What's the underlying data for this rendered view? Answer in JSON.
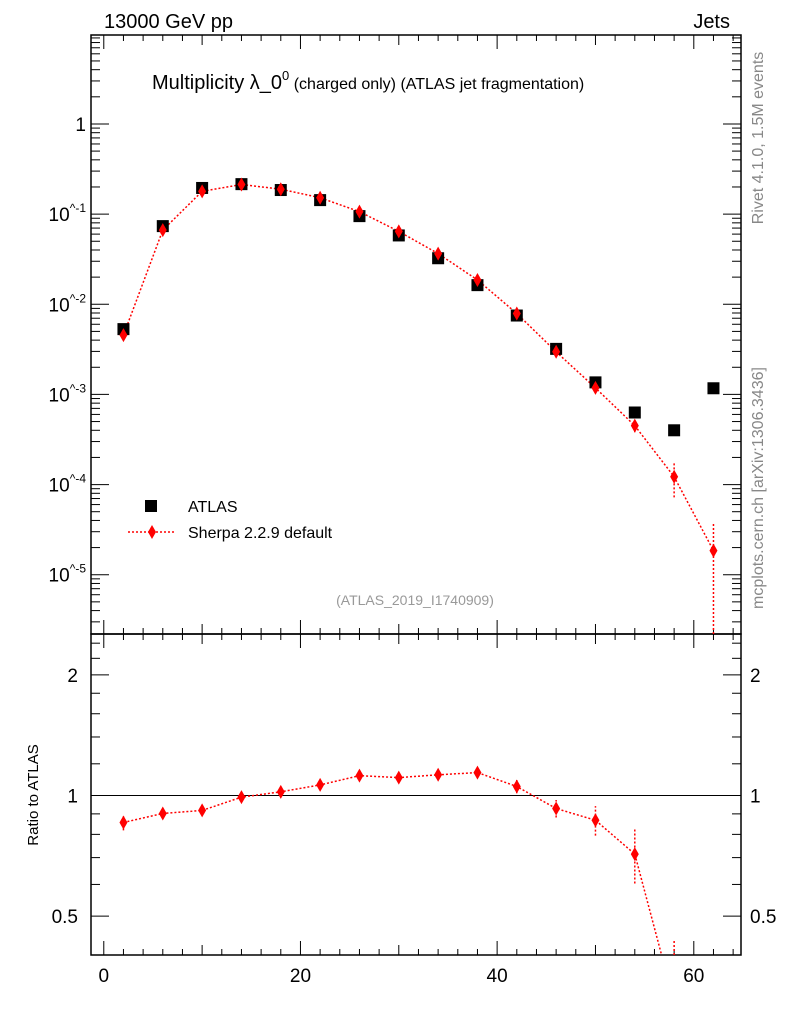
{
  "header": {
    "left": "13000 GeV pp",
    "right": "Jets"
  },
  "side": {
    "rivet": "Rivet 4.1.0,  1.5M events",
    "mcplots": "mcplots.cern.ch [arXiv:1306.3436]"
  },
  "chart_data": {
    "type": "scatter",
    "title_main": "Multiplicity λ_0",
    "title_sup": "0",
    "title_rest": " (charged only) (ATLAS jet fragmentation)",
    "analysis_label": "(ATLAS_2019_I1740909)",
    "xlim": [
      -1.3,
      64.8
    ],
    "ylim": [
      2.2e-06,
      9.7
    ],
    "yscale": "log",
    "ratio_ylabel": "Ratio to ATLAS",
    "ratio_ylim": [
      0.4,
      2.53
    ],
    "x_ticks": [
      "0",
      "20",
      "40",
      "60"
    ],
    "y_ticks": [
      "1",
      "10^-1",
      "10^-2",
      "10^-3",
      "10^-4",
      "10^-5"
    ],
    "ratio_ticks": [
      "2",
      "1",
      "0.5"
    ],
    "legend": {
      "position": "bottom-left",
      "entries": [
        "ATLAS",
        "Sherpa 2.2.9 default"
      ]
    },
    "colors": {
      "data": "#000000",
      "mc": "#ff0000"
    },
    "x": [
      2,
      6,
      10,
      14,
      18,
      22,
      26,
      30,
      34,
      38,
      42,
      46,
      50,
      54,
      58,
      62
    ],
    "series": [
      {
        "name": "ATLAS",
        "values": [
          0.0053,
          0.0736,
          0.195,
          0.215,
          0.185,
          0.143,
          0.095,
          0.058,
          0.0324,
          0.0163,
          0.0075,
          0.0032,
          0.00136,
          0.00063,
          0.0004,
          0.00117
        ]
      },
      {
        "name": "Sherpa 2.2.9 default",
        "values": [
          0.00454,
          0.0664,
          0.179,
          0.213,
          0.189,
          0.152,
          0.1065,
          0.0643,
          0.0365,
          0.0186,
          0.0079,
          0.00297,
          0.00118,
          0.00045,
          0.000122,
          1.85e-05
        ],
        "err_lo": [
          0.0002,
          0.002,
          0.004,
          0.004,
          0.004,
          0.003,
          0.002,
          0.0015,
          0.001,
          0.0005,
          0.0003,
          0.00015,
          0.0001,
          7e-05,
          5e-05,
          1.85e-05
        ],
        "err_hi": [
          0.0002,
          0.002,
          0.004,
          0.004,
          0.004,
          0.003,
          0.002,
          0.0015,
          0.001,
          0.0005,
          0.0003,
          0.00015,
          0.0001,
          7e-05,
          5.3e-05,
          1.85e-05
        ]
      }
    ]
  }
}
